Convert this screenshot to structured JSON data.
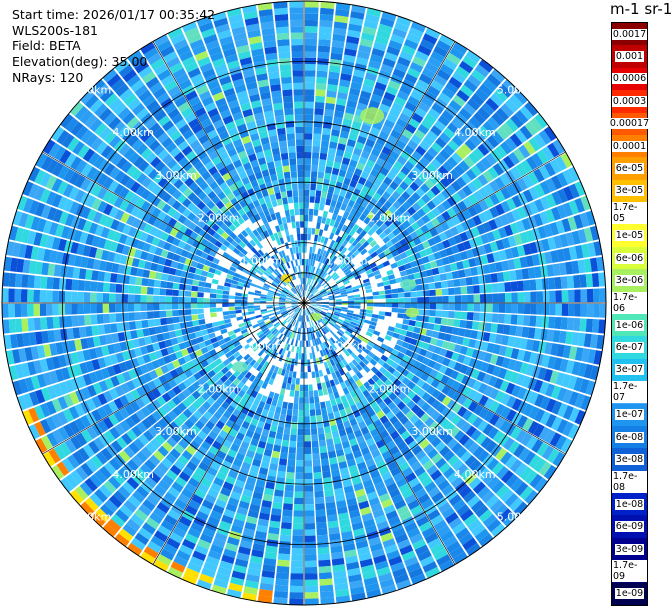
{
  "header": {
    "start_time": "Start time: 2026/01/17 00:35:42",
    "instrument": "WLS200s-181",
    "field": "Field: BETA",
    "elevation": "Elevation(deg): 35.00",
    "nrays": "NRays: 120"
  },
  "colorbar": {
    "title": "m-1 sr-1",
    "labels": [
      "0.0017",
      "0.001",
      "0.0006",
      "0.0003",
      "0.00017",
      "0.0001",
      "6e-05",
      "3e-05",
      "1.7e-05",
      "1e-05",
      "6e-06",
      "3e-06",
      "1.7e-06",
      "1e-06",
      "6e-07",
      "3e-07",
      "1.7e-07",
      "1e-07",
      "6e-08",
      "3e-08",
      "1.7e-08",
      "1e-08",
      "6e-09",
      "3e-09",
      "1.7e-09",
      "1e-09"
    ],
    "colors": [
      "#8a0000",
      "#c00000",
      "#e60000",
      "#ff2a00",
      "#ff5a00",
      "#ff7f00",
      "#ffa000",
      "#ffc000",
      "#ffe000",
      "#ffff30",
      "#d8ff3a",
      "#a8f060",
      "#80f080",
      "#50e8b8",
      "#30d8e0",
      "#20c0f0",
      "#40aaff",
      "#1e96f0",
      "#1480e6",
      "#1060d8",
      "#0a40cc",
      "#0020c8",
      "#0010b0",
      "#000090",
      "#000070",
      "#000050"
    ]
  },
  "chart_data": {
    "type": "heatmap",
    "projection": "polar PPI",
    "field": "BETA",
    "elevation_deg": 35.0,
    "n_rays": 120,
    "range_rings_km": [
      1,
      2,
      3,
      4,
      5
    ],
    "range_ring_labels": [
      "1.00km",
      "2.00km",
      "3.00km",
      "4.00km",
      "5.00km"
    ],
    "max_range_km": 5.0,
    "colorbar_range": [
      1e-09,
      0.0017
    ],
    "dominant_range": [
      1e-08,
      3e-07
    ]
  }
}
